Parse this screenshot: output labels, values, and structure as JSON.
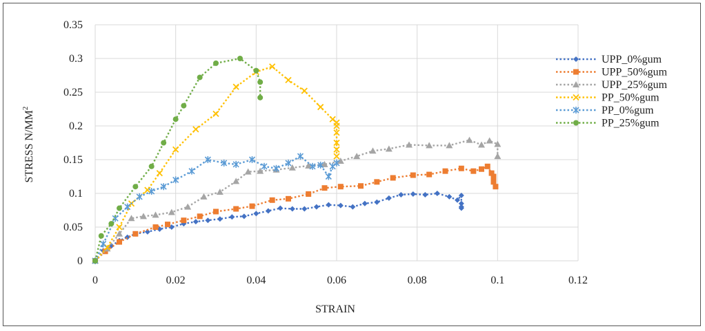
{
  "chart_data": {
    "type": "scatter",
    "title": "",
    "xlabel": "STRAIN",
    "ylabel": "STRESS  N/MM",
    "ylabel_superscript": "2",
    "xlim": [
      0,
      0.12
    ],
    "ylim": [
      0,
      0.35
    ],
    "x_ticks": [
      "0",
      "0.02",
      "0.04",
      "0.06",
      "0.08",
      "0.1",
      "0.12"
    ],
    "y_ticks": [
      "0",
      "0.05",
      "0.1",
      "0.15",
      "0.2",
      "0.25",
      "0.3",
      "0.35"
    ],
    "grid": true,
    "legend_position": "right",
    "series": [
      {
        "name": "UPP_0%gum",
        "color": "#4472C4",
        "marker": "diamond",
        "x": [
          0,
          0.002,
          0.004,
          0.006,
          0.008,
          0.01,
          0.013,
          0.016,
          0.019,
          0.022,
          0.025,
          0.028,
          0.031,
          0.034,
          0.037,
          0.04,
          0.043,
          0.046,
          0.049,
          0.052,
          0.055,
          0.058,
          0.061,
          0.064,
          0.067,
          0.07,
          0.073,
          0.076,
          0.079,
          0.082,
          0.085,
          0.088,
          0.09,
          0.091,
          0.091,
          0.091,
          0.091
        ],
        "y": [
          0,
          0.015,
          0.022,
          0.03,
          0.035,
          0.04,
          0.043,
          0.047,
          0.05,
          0.055,
          0.058,
          0.06,
          0.062,
          0.065,
          0.066,
          0.07,
          0.074,
          0.078,
          0.077,
          0.077,
          0.08,
          0.083,
          0.082,
          0.08,
          0.085,
          0.087,
          0.093,
          0.098,
          0.099,
          0.098,
          0.1,
          0.095,
          0.09,
          0.097,
          0.085,
          0.08,
          0.078
        ]
      },
      {
        "name": "UPP_50%gum",
        "color": "#ED7D31",
        "marker": "square",
        "x": [
          0,
          0.0025,
          0.006,
          0.01,
          0.015,
          0.018,
          0.022,
          0.026,
          0.03,
          0.035,
          0.039,
          0.044,
          0.048,
          0.053,
          0.057,
          0.061,
          0.066,
          0.07,
          0.074,
          0.079,
          0.083,
          0.087,
          0.091,
          0.094,
          0.096,
          0.0975,
          0.0985,
          0.099,
          0.099,
          0.0995
        ],
        "y": [
          0,
          0.014,
          0.028,
          0.04,
          0.05,
          0.054,
          0.06,
          0.066,
          0.073,
          0.077,
          0.081,
          0.09,
          0.092,
          0.099,
          0.108,
          0.11,
          0.111,
          0.117,
          0.123,
          0.127,
          0.128,
          0.133,
          0.137,
          0.133,
          0.136,
          0.14,
          0.13,
          0.125,
          0.117,
          0.11
        ]
      },
      {
        "name": "UPP_25%gum",
        "color": "#A5A5A5",
        "marker": "triangle",
        "x": [
          0,
          0.003,
          0.006,
          0.009,
          0.012,
          0.015,
          0.019,
          0.023,
          0.027,
          0.031,
          0.035,
          0.038,
          0.041,
          0.045,
          0.049,
          0.053,
          0.057,
          0.061,
          0.065,
          0.069,
          0.073,
          0.078,
          0.083,
          0.088,
          0.093,
          0.096,
          0.098,
          0.1,
          0.1
        ],
        "y": [
          0,
          0.018,
          0.04,
          0.063,
          0.066,
          0.068,
          0.072,
          0.08,
          0.095,
          0.102,
          0.118,
          0.132,
          0.133,
          0.135,
          0.138,
          0.141,
          0.143,
          0.148,
          0.155,
          0.163,
          0.166,
          0.172,
          0.171,
          0.171,
          0.179,
          0.172,
          0.178,
          0.173,
          0.155
        ]
      },
      {
        "name": "PP_50%gum",
        "color": "#FFC000",
        "marker": "x",
        "x": [
          0,
          0.003,
          0.006,
          0.009,
          0.013,
          0.016,
          0.02,
          0.025,
          0.03,
          0.035,
          0.04,
          0.044,
          0.048,
          0.052,
          0.056,
          0.059,
          0.06,
          0.06,
          0.06,
          0.06,
          0.06,
          0.06
        ],
        "y": [
          0,
          0.02,
          0.05,
          0.085,
          0.105,
          0.13,
          0.165,
          0.195,
          0.218,
          0.258,
          0.28,
          0.288,
          0.268,
          0.252,
          0.228,
          0.21,
          0.205,
          0.2,
          0.19,
          0.175,
          0.165,
          0.155
        ]
      },
      {
        "name": "PP_0%gum",
        "color": "#5B9BD5",
        "marker": "asterisk",
        "x": [
          0,
          0.002,
          0.005,
          0.008,
          0.011,
          0.014,
          0.017,
          0.02,
          0.024,
          0.028,
          0.032,
          0.035,
          0.039,
          0.042,
          0.045,
          0.048,
          0.051,
          0.054,
          0.056,
          0.058,
          0.059,
          0.06
        ],
        "y": [
          0,
          0.025,
          0.063,
          0.08,
          0.095,
          0.103,
          0.11,
          0.12,
          0.133,
          0.15,
          0.145,
          0.143,
          0.15,
          0.14,
          0.137,
          0.145,
          0.155,
          0.14,
          0.142,
          0.125,
          0.14,
          0.145
        ]
      },
      {
        "name": "PP_25%gum",
        "color": "#70AD47",
        "marker": "circle",
        "x": [
          0,
          0.0015,
          0.004,
          0.006,
          0.01,
          0.014,
          0.017,
          0.02,
          0.022,
          0.026,
          0.03,
          0.036,
          0.04,
          0.041,
          0.041
        ],
        "y": [
          0,
          0.037,
          0.055,
          0.078,
          0.11,
          0.14,
          0.175,
          0.21,
          0.23,
          0.272,
          0.293,
          0.3,
          0.282,
          0.265,
          0.242
        ]
      }
    ]
  }
}
